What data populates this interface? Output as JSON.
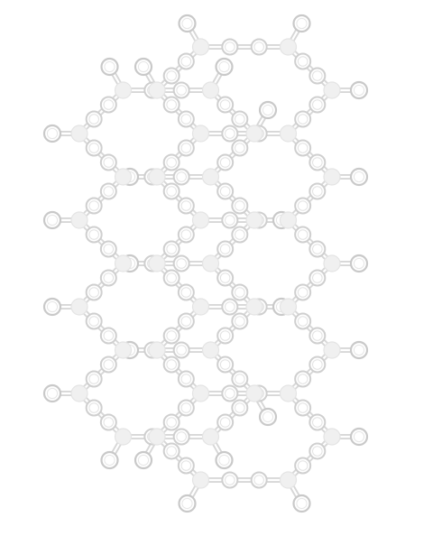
{
  "diagram": {
    "kind": "hexagonal-lattice",
    "columns": [
      {
        "offset": 0,
        "hexagons": 4
      },
      {
        "offset": 1,
        "hexagons": 5
      }
    ],
    "colors": {
      "bond_outline": "#d7d7d7",
      "node_outline": "#cfcfcf",
      "vertex_fill": "#f0f0f0",
      "background": "#ffffff"
    }
  }
}
